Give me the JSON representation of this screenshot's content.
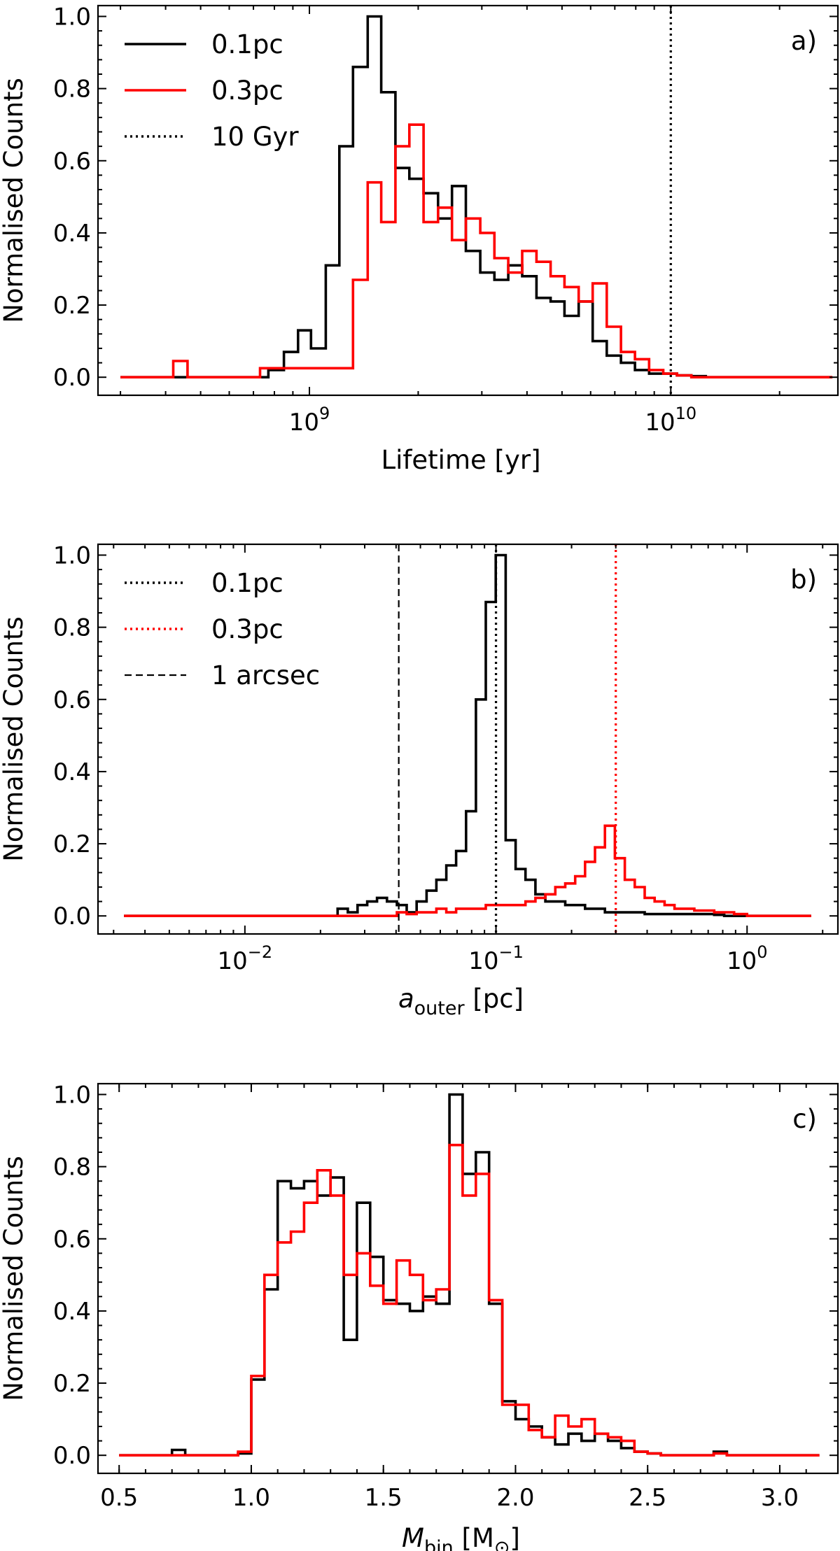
{
  "colors": {
    "black": "#000000",
    "red": "#ff0000"
  },
  "chart_data": [
    {
      "id": "a",
      "type": "histogram",
      "panel_label": "a)",
      "xlabel": "Lifetime [yr]",
      "xlabel_main": "Lifetime [yr]",
      "ylabel": "Normalised Counts",
      "xscale": "log",
      "xlim": [
        260000000.0,
        29000000000.0
      ],
      "ylim": [
        -0.05,
        1.03
      ],
      "yticks": [
        0.0,
        0.2,
        0.4,
        0.6,
        0.8,
        1.0
      ],
      "ytick_labels": [
        "0.0",
        "0.2",
        "0.4",
        "0.6",
        "0.8",
        "1.0"
      ],
      "xticks": [
        {
          "value": 1000000000.0,
          "base": "10",
          "exp": "9"
        },
        {
          "value": 10000000000.0,
          "base": "10",
          "exp": "10"
        }
      ],
      "legend_position": "top-left",
      "legend": [
        {
          "label": "0.1pc",
          "style": "solid",
          "color": "#000000"
        },
        {
          "label": "0.3pc",
          "style": "solid",
          "color": "#ff0000"
        },
        {
          "label": "10 Gyr",
          "style": "dotted",
          "color": "#000000"
        }
      ],
      "vlines": [
        {
          "x": 10000000000.0,
          "style": "dotted",
          "color": "#000000"
        }
      ],
      "series": [
        {
          "name": "0.1pc",
          "color": "#000000",
          "edges": [
            300000000.0,
            770000000.0,
            850000000.0,
            930000000.0,
            1010000000.0,
            1110000000.0,
            1210000000.0,
            1320000000.0,
            1450000000.0,
            1580000000.0,
            1730000000.0,
            1890000000.0,
            2070000000.0,
            2270000000.0,
            2480000000.0,
            2710000000.0,
            2970000000.0,
            3250000000.0,
            3550000000.0,
            3880000000.0,
            4250000000.0,
            4650000000.0,
            5080000000.0,
            5560000000.0,
            6080000000.0,
            6650000000.0,
            7280000000.0,
            7960000000.0,
            8710000000.0,
            9530000000.0,
            10400000000.0,
            11400000000.0,
            12500000000.0,
            13700000000.0,
            28000000000.0
          ],
          "values": [
            0.0,
            0.02,
            0.07,
            0.13,
            0.08,
            0.31,
            0.64,
            0.86,
            1.0,
            0.79,
            0.58,
            0.55,
            0.51,
            0.44,
            0.53,
            0.35,
            0.29,
            0.27,
            0.31,
            0.28,
            0.22,
            0.21,
            0.17,
            0.21,
            0.1,
            0.06,
            0.04,
            0.02,
            0.01,
            0.01,
            0.005,
            0.003,
            0.0,
            0.0
          ]
        },
        {
          "name": "0.3pc",
          "color": "#ff0000",
          "edges": [
            300000000.0,
            420000000.0,
            460000000.0,
            730000000.0,
            1320000000.0,
            1450000000.0,
            1580000000.0,
            1730000000.0,
            1890000000.0,
            2070000000.0,
            2270000000.0,
            2480000000.0,
            2710000000.0,
            2970000000.0,
            3250000000.0,
            3550000000.0,
            3880000000.0,
            4250000000.0,
            4650000000.0,
            5080000000.0,
            5560000000.0,
            6080000000.0,
            6650000000.0,
            7280000000.0,
            7960000000.0,
            8710000000.0,
            9530000000.0,
            10400000000.0,
            11400000000.0,
            28000000000.0
          ],
          "values": [
            0.0,
            0.045,
            0.0,
            0.025,
            0.27,
            0.54,
            0.43,
            0.64,
            0.7,
            0.43,
            0.47,
            0.38,
            0.44,
            0.4,
            0.33,
            0.29,
            0.35,
            0.32,
            0.28,
            0.25,
            0.21,
            0.26,
            0.14,
            0.07,
            0.05,
            0.02,
            0.01,
            0.005,
            0.0
          ]
        }
      ]
    },
    {
      "id": "b",
      "type": "histogram",
      "panel_label": "b)",
      "xlabel": "a_outer [pc]",
      "xlabel_main": "a",
      "xlabel_sub": "outer",
      "xlabel_unit": " [pc]",
      "ylabel": "Normalised Counts",
      "xscale": "log",
      "xlim": [
        0.0026,
        2.3
      ],
      "ylim": [
        -0.05,
        1.03
      ],
      "yticks": [
        0.0,
        0.2,
        0.4,
        0.6,
        0.8,
        1.0
      ],
      "ytick_labels": [
        "0.0",
        "0.2",
        "0.4",
        "0.6",
        "0.8",
        "1.0"
      ],
      "xticks": [
        {
          "value": 0.01,
          "base": "10",
          "exp": "−2"
        },
        {
          "value": 0.1,
          "base": "10",
          "exp": "−1"
        },
        {
          "value": 1.0,
          "base": "10",
          "exp": "0"
        }
      ],
      "legend_position": "top-left",
      "legend": [
        {
          "label": "0.1pc",
          "style": "dotted",
          "color": "#000000"
        },
        {
          "label": "0.3pc",
          "style": "dotted",
          "color": "#ff0000"
        },
        {
          "label": "1 arcsec",
          "style": "dashed",
          "color": "#000000"
        }
      ],
      "vlines": [
        {
          "x": 0.041,
          "style": "dashed",
          "color": "#000000"
        },
        {
          "x": 0.1,
          "style": "dotted",
          "color": "#000000"
        },
        {
          "x": 0.3,
          "style": "dotted",
          "color": "#ff0000"
        }
      ],
      "series": [
        {
          "name": "0.1pc",
          "color": "#000000",
          "edges": [
            0.0033,
            0.0234,
            0.0257,
            0.0281,
            0.0307,
            0.0336,
            0.0368,
            0.0403,
            0.0441,
            0.0483,
            0.0529,
            0.0579,
            0.0634,
            0.0694,
            0.076,
            0.0832,
            0.0911,
            0.0998,
            0.1093,
            0.1197,
            0.1311,
            0.1436,
            0.1573,
            0.1723,
            0.1887,
            0.2067,
            0.2264,
            0.248,
            0.2716,
            0.2975,
            0.3259,
            0.357,
            0.391,
            0.4283,
            0.4692,
            0.514,
            0.563,
            0.6167,
            0.6756,
            0.74,
            0.8107,
            1.0,
            1.8
          ],
          "values": [
            0.0,
            0.02,
            0.01,
            0.03,
            0.04,
            0.05,
            0.04,
            0.03,
            0.01,
            0.04,
            0.07,
            0.1,
            0.14,
            0.18,
            0.29,
            0.6,
            0.87,
            1.0,
            0.21,
            0.13,
            0.1,
            0.06,
            0.04,
            0.04,
            0.03,
            0.03,
            0.02,
            0.02,
            0.01,
            0.01,
            0.01,
            0.01,
            0.005,
            0.005,
            0.005,
            0.005,
            0.005,
            0.005,
            0.005,
            0.003,
            0.0,
            0.0
          ]
        },
        {
          "name": "0.3pc",
          "color": "#ff0000",
          "edges": [
            0.0033,
            0.0403,
            0.0441,
            0.0483,
            0.0529,
            0.0579,
            0.0634,
            0.0694,
            0.076,
            0.0832,
            0.0911,
            0.0998,
            0.1093,
            0.1197,
            0.1311,
            0.1436,
            0.1573,
            0.1723,
            0.1887,
            0.2067,
            0.2264,
            0.248,
            0.2716,
            0.2975,
            0.3259,
            0.357,
            0.391,
            0.4283,
            0.4692,
            0.514,
            0.563,
            0.6167,
            0.6756,
            0.74,
            0.8107,
            0.888,
            1.0,
            1.8
          ],
          "values": [
            0.0,
            0.01,
            0.005,
            0.01,
            0.01,
            0.02,
            0.01,
            0.02,
            0.02,
            0.02,
            0.03,
            0.03,
            0.03,
            0.03,
            0.04,
            0.05,
            0.06,
            0.08,
            0.09,
            0.11,
            0.15,
            0.19,
            0.25,
            0.16,
            0.1,
            0.08,
            0.05,
            0.04,
            0.03,
            0.02,
            0.02,
            0.015,
            0.015,
            0.01,
            0.01,
            0.005,
            0.0
          ]
        }
      ]
    },
    {
      "id": "c",
      "type": "histogram",
      "panel_label": "c)",
      "xlabel": "M_bin [M_⊙]",
      "xlabel_main": "M",
      "xlabel_sub": "bin",
      "xlabel_unit": " [M",
      "xlabel_unit_sub": "⊙",
      "xlabel_unit_close": "]",
      "ylabel": "Normalised Counts",
      "xscale": "linear",
      "xlim": [
        0.42,
        3.22
      ],
      "ylim": [
        -0.05,
        1.03
      ],
      "yticks": [
        0.0,
        0.2,
        0.4,
        0.6,
        0.8,
        1.0
      ],
      "ytick_labels": [
        "0.0",
        "0.2",
        "0.4",
        "0.6",
        "0.8",
        "1.0"
      ],
      "xticks": [
        {
          "value": 0.5,
          "label": "0.5"
        },
        {
          "value": 1.0,
          "label": "1.0"
        },
        {
          "value": 1.5,
          "label": "1.5"
        },
        {
          "value": 2.0,
          "label": "2.0"
        },
        {
          "value": 2.5,
          "label": "2.5"
        },
        {
          "value": 3.0,
          "label": "3.0"
        }
      ],
      "legend_position": "none",
      "legend": [],
      "vlines": [],
      "series": [
        {
          "name": "0.1pc",
          "color": "#000000",
          "edges": [
            0.5,
            0.7,
            0.75,
            0.95,
            1.0,
            1.05,
            1.1,
            1.15,
            1.2,
            1.25,
            1.3,
            1.35,
            1.4,
            1.45,
            1.5,
            1.55,
            1.6,
            1.65,
            1.7,
            1.75,
            1.8,
            1.85,
            1.9,
            1.95,
            2.0,
            2.05,
            2.1,
            2.15,
            2.2,
            2.25,
            2.3,
            2.35,
            2.4,
            2.45,
            2.5,
            2.55,
            2.75,
            2.8,
            3.15
          ],
          "values": [
            0.0,
            0.015,
            0.0,
            0.005,
            0.21,
            0.46,
            0.76,
            0.74,
            0.76,
            0.72,
            0.77,
            0.32,
            0.7,
            0.55,
            0.43,
            0.42,
            0.4,
            0.44,
            0.42,
            1.0,
            0.78,
            0.84,
            0.42,
            0.15,
            0.1,
            0.08,
            0.05,
            0.03,
            0.06,
            0.04,
            0.06,
            0.04,
            0.02,
            0.01,
            0.005,
            0.0,
            0.01,
            0.0
          ]
        },
        {
          "name": "0.3pc",
          "color": "#ff0000",
          "edges": [
            0.5,
            0.95,
            1.0,
            1.05,
            1.1,
            1.15,
            1.2,
            1.25,
            1.3,
            1.35,
            1.4,
            1.45,
            1.5,
            1.55,
            1.6,
            1.65,
            1.7,
            1.75,
            1.8,
            1.85,
            1.9,
            1.95,
            2.0,
            2.05,
            2.1,
            2.15,
            2.2,
            2.25,
            2.3,
            2.35,
            2.4,
            2.45,
            2.5,
            2.55,
            2.75,
            2.8,
            3.15
          ],
          "values": [
            0.0,
            0.01,
            0.22,
            0.5,
            0.59,
            0.62,
            0.7,
            0.79,
            0.72,
            0.5,
            0.56,
            0.47,
            0.42,
            0.54,
            0.5,
            0.43,
            0.46,
            0.86,
            0.72,
            0.78,
            0.43,
            0.14,
            0.14,
            0.07,
            0.05,
            0.11,
            0.08,
            0.1,
            0.06,
            0.05,
            0.04,
            0.01,
            0.005,
            0.0,
            0.005,
            0.0
          ]
        }
      ]
    }
  ]
}
